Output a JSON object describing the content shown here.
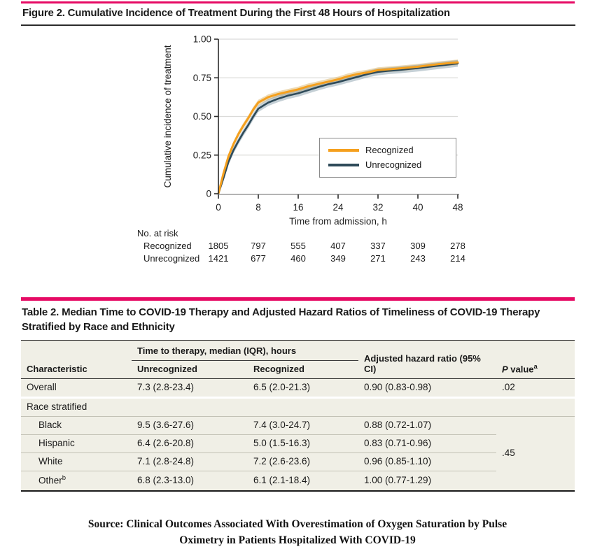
{
  "colors": {
    "accent": "#e60a64",
    "recognized": "#f5a01e",
    "unrecognized": "#2e4a59"
  },
  "figure": {
    "title": "Figure 2. Cumulative Incidence of Treatment During the First 48 Hours of Hospitalization"
  },
  "chart_data": {
    "type": "line",
    "xlabel": "Time from admission, h",
    "ylabel": "Cumulative incidence of treatment",
    "xlim": [
      0,
      48
    ],
    "ylim": [
      0,
      1
    ],
    "x_ticks": [
      0,
      8,
      16,
      24,
      32,
      40,
      48
    ],
    "y_ticks": [
      0,
      0.25,
      0.5,
      0.75,
      1
    ],
    "y_tick_labels": [
      "0",
      "0.25",
      "0.50",
      "0.75",
      "1.00"
    ],
    "grid": true,
    "legend_position": "inside-right",
    "series": [
      {
        "name": "Recognized",
        "color": "#f5a01e",
        "ci_color": "rgba(222,188,118,0.55)",
        "ci_halfwidth": 0.018,
        "x": [
          0,
          1,
          2,
          3,
          4,
          5,
          6,
          7,
          8,
          10,
          12,
          14,
          16,
          18,
          20,
          22,
          24,
          26,
          28,
          30,
          32,
          34,
          36,
          40,
          44,
          48
        ],
        "y": [
          0,
          0.13,
          0.24,
          0.32,
          0.385,
          0.44,
          0.49,
          0.545,
          0.59,
          0.625,
          0.645,
          0.66,
          0.675,
          0.695,
          0.71,
          0.725,
          0.74,
          0.76,
          0.775,
          0.785,
          0.8,
          0.805,
          0.81,
          0.822,
          0.838,
          0.85
        ]
      },
      {
        "name": "Unrecognized",
        "color": "#2e4a59",
        "ci_color": "rgba(116,143,158,0.42)",
        "ci_halfwidth": 0.022,
        "x": [
          0,
          1,
          2,
          3,
          4,
          5,
          6,
          7,
          8,
          10,
          12,
          14,
          16,
          18,
          20,
          22,
          24,
          26,
          28,
          30,
          32,
          34,
          36,
          40,
          44,
          48
        ],
        "y": [
          0,
          0.1,
          0.205,
          0.28,
          0.34,
          0.395,
          0.445,
          0.5,
          0.55,
          0.59,
          0.615,
          0.635,
          0.65,
          0.67,
          0.69,
          0.708,
          0.722,
          0.74,
          0.757,
          0.775,
          0.788,
          0.795,
          0.8,
          0.813,
          0.828,
          0.843
        ]
      }
    ],
    "at_risk": {
      "label": "No. at risk",
      "rows": [
        {
          "name": "Recognized",
          "values": [
            1805,
            797,
            555,
            407,
            337,
            309,
            278
          ]
        },
        {
          "name": "Unrecognized",
          "values": [
            1421,
            677,
            460,
            349,
            271,
            243,
            214
          ]
        }
      ]
    }
  },
  "table2": {
    "title": "Table 2. Median Time to COVID-19 Therapy and Adjusted Hazard Ratios of Timeliness of COVID-19 Therapy Stratified by Race and Ethnicity",
    "col_headers": {
      "characteristic": "Characteristic",
      "time_span": "Time to therapy, median (IQR), hours",
      "unrecognized": "Unrecognized",
      "recognized": "Recognized",
      "ahr": "Adjusted hazard ratio (95% CI)",
      "p_italic": "P",
      "p_rest": " value",
      "p_sup": "a"
    },
    "rows": {
      "overall": {
        "label": "Overall",
        "unrec": "7.3 (2.8-23.4)",
        "rec": "6.5 (2.0-21.3)",
        "ahr": "0.90 (0.83-0.98)",
        "p": ".02"
      },
      "section_label": "Race stratified",
      "black": {
        "label": "Black",
        "unrec": "9.5 (3.6-27.6)",
        "rec": "7.4 (3.0-24.7)",
        "ahr": "0.88 (0.72-1.07)"
      },
      "hispanic": {
        "label": "Hispanic",
        "unrec": "6.4 (2.6-20.8)",
        "rec": "5.0 (1.5-16.3)",
        "ahr": "0.83 (0.71-0.96)"
      },
      "white": {
        "label": "White",
        "unrec": "7.1 (2.8-24.8)",
        "rec": "7.2 (2.6-23.6)",
        "ahr": "0.96 (0.85-1.10)"
      },
      "other": {
        "label": "Other",
        "label_sup": "b",
        "unrec": "6.8 (2.3-13.0)",
        "rec": "6.1 (2.1-18.4)",
        "ahr": "1.00 (0.77-1.29)"
      },
      "race_p": ".45"
    }
  },
  "source": {
    "text": "Source: Clinical Outcomes Associated With Overestimation of Oxygen Saturation by Pulse Oximetry in Patients Hospitalized With COVID-19"
  }
}
